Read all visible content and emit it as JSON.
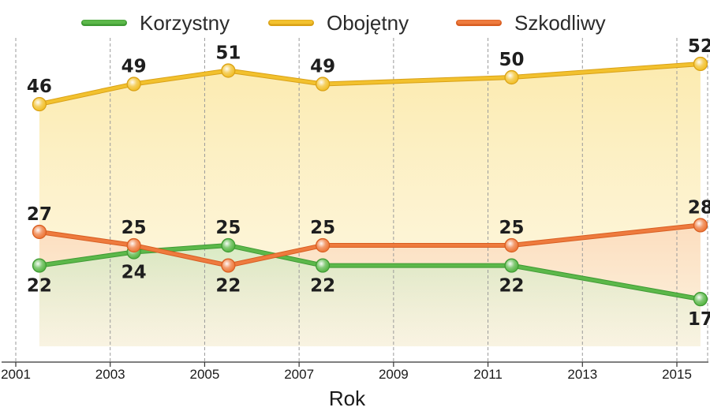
{
  "chart_data": {
    "type": "line",
    "title": "",
    "xlabel": "Rok",
    "ylabel": "",
    "xlim": [
      2001,
      2015.6
    ],
    "ylim": [
      0,
      60
    ],
    "x_ticks": [
      "2001",
      "2003",
      "2005",
      "2007",
      "2009",
      "2011",
      "2013",
      "2015"
    ],
    "grid": "vertical-dashed",
    "legend_position": "top",
    "series": [
      {
        "name": "Korzystny",
        "color": "#5cb84a",
        "x": [
          2001.5,
          2003.5,
          2005.5,
          2007.5,
          2011.5,
          2015.5
        ],
        "values": [
          22,
          24,
          25,
          22,
          22,
          17
        ],
        "label_positions": [
          "below",
          "below",
          "above",
          "below",
          "below",
          "below"
        ]
      },
      {
        "name": "Obojętny",
        "color": "#f2c12e",
        "x": [
          2001.5,
          2003.5,
          2005.5,
          2007.5,
          2011.5,
          2015.5
        ],
        "values": [
          46,
          49,
          51,
          49,
          50,
          52
        ],
        "label_positions": [
          "above",
          "above",
          "above",
          "above",
          "above",
          "above"
        ]
      },
      {
        "name": "Szkodliwy",
        "color": "#ee7b3e",
        "x": [
          2001.5,
          2003.5,
          2005.5,
          2007.5,
          2011.5,
          2015.5
        ],
        "values": [
          27,
          25,
          22,
          25,
          25,
          28
        ],
        "label_positions": [
          "above",
          "above",
          "below",
          "above",
          "above",
          "above"
        ]
      }
    ]
  }
}
